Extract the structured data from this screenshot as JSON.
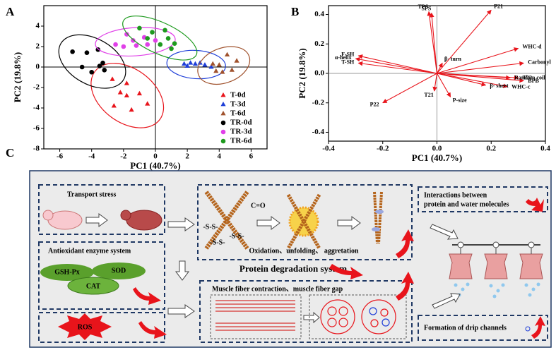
{
  "chart_data": [
    {
      "type": "scatter",
      "label": "A",
      "x_label": "PC1 (40.7%)",
      "y_label": "PC2 (19.8%)",
      "xlim": [
        -7,
        7
      ],
      "ylim": [
        -8,
        6
      ],
      "xticks": [
        -6,
        -4,
        -2,
        0,
        2,
        4,
        6
      ],
      "yticks": [
        -8,
        -6,
        -4,
        -2,
        0,
        2,
        4
      ],
      "zero_lines": true,
      "ellipses": true,
      "legend": "lower right",
      "series": [
        {
          "name": "T-0d",
          "color": "#e8141b",
          "marker": "triangle",
          "x": [
            -2.2,
            -1.8,
            -1.0,
            -2.6,
            -1.5,
            -0.5,
            -2.7,
            -1.8
          ],
          "values": [
            -2.5,
            -2.8,
            -2.6,
            -3.8,
            -4.2,
            -3.6,
            -1.2,
            -1.6
          ]
        },
        {
          "name": "T-3d",
          "color": "#1f3fd8",
          "marker": "triangle",
          "x": [
            2.2,
            2.5,
            2.8,
            3.1,
            2.0,
            3.5,
            1.8
          ],
          "values": [
            0.4,
            0.3,
            0.4,
            0.2,
            0.1,
            0.0,
            0.3
          ]
        },
        {
          "name": "T-6d",
          "color": "#a0522d",
          "marker": "triangle",
          "x": [
            3.6,
            4.2,
            5.1,
            4.5,
            3.8,
            4.8,
            4.0
          ],
          "values": [
            0.3,
            -0.5,
            0.6,
            1.2,
            -0.4,
            -0.3,
            0.2
          ]
        },
        {
          "name": "TR-0d",
          "color": "#000000",
          "marker": "circle",
          "x": [
            -5.2,
            -4.3,
            -3.6,
            -4.6,
            -4.0,
            -3.5,
            -3.2,
            -3.3
          ],
          "values": [
            1.5,
            1.4,
            1.7,
            0.0,
            -0.5,
            0.1,
            -0.3,
            0.4
          ]
        },
        {
          "name": "TR-3d",
          "color": "#e040e8",
          "marker": "circle",
          "x": [
            -2.5,
            -2.0,
            -1.4,
            -0.7,
            -0.5,
            0.0,
            -1.8,
            -1.2
          ],
          "values": [
            2.2,
            2.0,
            2.6,
            2.9,
            2.2,
            2.6,
            3.2,
            2.1
          ]
        },
        {
          "name": "TR-6d",
          "color": "#1e9a1e",
          "marker": "circle",
          "x": [
            -1.0,
            -0.2,
            0.3,
            0.8,
            1.0,
            -0.5,
            1.2,
            0.6
          ],
          "values": [
            3.8,
            3.4,
            2.2,
            2.8,
            1.8,
            2.8,
            2.3,
            3.6
          ]
        }
      ]
    },
    {
      "type": "biplot",
      "label": "B",
      "x_label": "PC1 (40.7%)",
      "y_label": "PC2 (19.8%)",
      "xlim": [
        -0.4,
        0.4
      ],
      "ylim": [
        -0.46,
        0.46
      ],
      "xticks": [
        -0.4,
        -0.2,
        {
          "value": 0,
          "label": "0.0"
        },
        0.2,
        0.4
      ],
      "yticks": [
        -0.4,
        -0.2,
        {
          "value": 0,
          "label": "0.0"
        },
        0.2,
        0.4
      ],
      "zero_lines": true,
      "color": "#e8141b",
      "categories": [
        "TPS",
        "SPS",
        "P21",
        "WHC-d",
        "Carbonyl",
        "T22",
        "BPB",
        "Random coil",
        "WHC-c",
        "β- sheet",
        "P-size",
        "T21",
        "P22",
        "T-SH",
        "α-helix",
        "F-SH",
        "β- turn"
      ],
      "x": [
        -0.03,
        -0.02,
        0.2,
        0.3,
        0.32,
        0.3,
        0.32,
        0.27,
        0.26,
        0.18,
        0.05,
        -0.01,
        -0.2,
        -0.29,
        -0.3,
        -0.29,
        0.02
      ],
      "values": [
        0.42,
        0.41,
        0.43,
        0.17,
        0.07,
        -0.03,
        -0.05,
        -0.03,
        -0.09,
        -0.08,
        -0.16,
        -0.12,
        -0.2,
        0.07,
        0.1,
        0.12,
        0.07
      ]
    }
  ],
  "diagram": {
    "label": "C",
    "transport": "Transport stress",
    "antioxidant": "Antioxidant enzyme system",
    "enzymes": [
      "GSH-Px",
      "SOD",
      "CAT"
    ],
    "ros": "ROS",
    "carbonyl": "C=O",
    "disulfide": [
      "-S-S-",
      "-S-S-",
      "-S-S-"
    ],
    "oxidation": "Oxidation、unfolding、 aggretation",
    "degradation": "Protein degradation system",
    "fiber": "Muscle fiber contraction、muscle fiber gap",
    "interactions": [
      "Interactions between",
      "protein and water molecules"
    ],
    "drip": "Formation of drip channels"
  }
}
